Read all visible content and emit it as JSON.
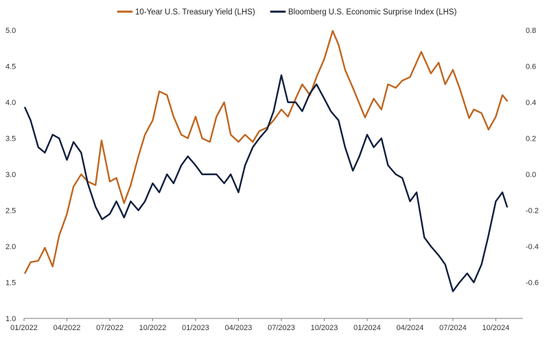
{
  "chart_data": {
    "type": "line",
    "legend_position": "top-center",
    "grid": false,
    "x_ticks": [
      "01/2022",
      "04/2022",
      "07/2022",
      "10/2022",
      "01/2023",
      "04/2023",
      "07/2023",
      "10/2023",
      "01/2024",
      "04/2024",
      "07/2024",
      "10/2024"
    ],
    "x_range_months": [
      "2022-01",
      "2024-10"
    ],
    "y_left": {
      "ticks": [
        "1.0",
        "1.5",
        "2.0",
        "2.5",
        "3.0",
        "3.5",
        "4.0",
        "4.5",
        "5.0"
      ],
      "ylim": [
        1.0,
        5.0
      ]
    },
    "y_right": {
      "ticks": [
        "-0.6",
        "-0.4",
        "-0.2",
        "0.0",
        "0.2",
        "0.4",
        "0.6",
        "0.8"
      ],
      "ylim": [
        -0.8,
        0.8
      ]
    },
    "series": [
      {
        "name": "10-Year U.S. Treasury Yield (LHS)",
        "color": "#C0651E",
        "axis": "left",
        "points": [
          [
            "2022-01-03",
            1.63
          ],
          [
            "2022-01-15",
            1.78
          ],
          [
            "2022-02-01",
            1.8
          ],
          [
            "2022-02-15",
            1.98
          ],
          [
            "2022-03-01",
            1.72
          ],
          [
            "2022-03-15",
            2.15
          ],
          [
            "2022-04-01",
            2.45
          ],
          [
            "2022-04-15",
            2.83
          ],
          [
            "2022-05-01",
            3.0
          ],
          [
            "2022-05-15",
            2.9
          ],
          [
            "2022-06-01",
            2.85
          ],
          [
            "2022-06-14",
            3.47
          ],
          [
            "2022-07-01",
            2.9
          ],
          [
            "2022-07-15",
            2.95
          ],
          [
            "2022-08-01",
            2.6
          ],
          [
            "2022-08-15",
            2.85
          ],
          [
            "2022-09-01",
            3.25
          ],
          [
            "2022-09-15",
            3.55
          ],
          [
            "2022-10-01",
            3.75
          ],
          [
            "2022-10-15",
            4.15
          ],
          [
            "2022-11-01",
            4.1
          ],
          [
            "2022-11-15",
            3.8
          ],
          [
            "2022-12-01",
            3.55
          ],
          [
            "2022-12-15",
            3.5
          ],
          [
            "2023-01-01",
            3.8
          ],
          [
            "2023-01-15",
            3.5
          ],
          [
            "2023-02-01",
            3.45
          ],
          [
            "2023-02-15",
            3.8
          ],
          [
            "2023-03-01",
            4.0
          ],
          [
            "2023-03-15",
            3.55
          ],
          [
            "2023-04-01",
            3.45
          ],
          [
            "2023-04-15",
            3.55
          ],
          [
            "2023-05-01",
            3.45
          ],
          [
            "2023-05-15",
            3.6
          ],
          [
            "2023-06-01",
            3.65
          ],
          [
            "2023-06-15",
            3.75
          ],
          [
            "2023-07-01",
            3.9
          ],
          [
            "2023-07-15",
            3.8
          ],
          [
            "2023-08-01",
            4.05
          ],
          [
            "2023-08-15",
            4.25
          ],
          [
            "2023-09-01",
            4.1
          ],
          [
            "2023-09-15",
            4.35
          ],
          [
            "2023-10-01",
            4.6
          ],
          [
            "2023-10-19",
            4.99
          ],
          [
            "2023-11-01",
            4.8
          ],
          [
            "2023-11-15",
            4.45
          ],
          [
            "2023-12-01",
            4.2
          ],
          [
            "2023-12-27",
            3.79
          ],
          [
            "2024-01-15",
            4.05
          ],
          [
            "2024-02-01",
            3.9
          ],
          [
            "2024-02-15",
            4.25
          ],
          [
            "2024-03-01",
            4.2
          ],
          [
            "2024-03-15",
            4.3
          ],
          [
            "2024-04-01",
            4.35
          ],
          [
            "2024-04-25",
            4.7
          ],
          [
            "2024-05-15",
            4.4
          ],
          [
            "2024-06-01",
            4.55
          ],
          [
            "2024-06-15",
            4.25
          ],
          [
            "2024-07-01",
            4.45
          ],
          [
            "2024-07-15",
            4.2
          ],
          [
            "2024-08-05",
            3.78
          ],
          [
            "2024-08-15",
            3.9
          ],
          [
            "2024-09-01",
            3.85
          ],
          [
            "2024-09-16",
            3.62
          ],
          [
            "2024-10-01",
            3.8
          ],
          [
            "2024-10-15",
            4.1
          ],
          [
            "2024-10-25",
            4.02
          ]
        ]
      },
      {
        "name": "Bloomberg U.S. Economic Surprise Index (LHS)",
        "color": "#0E1E3D",
        "axis": "right",
        "points": [
          [
            "2022-01-03",
            0.37
          ],
          [
            "2022-01-15",
            0.3
          ],
          [
            "2022-02-01",
            0.15
          ],
          [
            "2022-02-15",
            0.12
          ],
          [
            "2022-03-01",
            0.22
          ],
          [
            "2022-03-15",
            0.2
          ],
          [
            "2022-04-01",
            0.08
          ],
          [
            "2022-04-15",
            0.18
          ],
          [
            "2022-05-01",
            0.12
          ],
          [
            "2022-05-15",
            -0.05
          ],
          [
            "2022-06-01",
            -0.18
          ],
          [
            "2022-06-15",
            -0.25
          ],
          [
            "2022-07-01",
            -0.22
          ],
          [
            "2022-07-15",
            -0.15
          ],
          [
            "2022-08-01",
            -0.24
          ],
          [
            "2022-08-15",
            -0.15
          ],
          [
            "2022-09-01",
            -0.2
          ],
          [
            "2022-09-15",
            -0.15
          ],
          [
            "2022-10-01",
            -0.05
          ],
          [
            "2022-10-15",
            -0.1
          ],
          [
            "2022-11-01",
            0.0
          ],
          [
            "2022-11-15",
            -0.05
          ],
          [
            "2022-12-01",
            0.05
          ],
          [
            "2022-12-15",
            0.1
          ],
          [
            "2023-01-01",
            0.05
          ],
          [
            "2023-01-15",
            0.0
          ],
          [
            "2023-02-01",
            0.0
          ],
          [
            "2023-02-15",
            0.0
          ],
          [
            "2023-03-01",
            -0.05
          ],
          [
            "2023-03-15",
            0.0
          ],
          [
            "2023-04-01",
            -0.1
          ],
          [
            "2023-04-15",
            0.05
          ],
          [
            "2023-05-01",
            0.15
          ],
          [
            "2023-05-15",
            0.2
          ],
          [
            "2023-06-01",
            0.25
          ],
          [
            "2023-06-15",
            0.35
          ],
          [
            "2023-07-01",
            0.55
          ],
          [
            "2023-07-15",
            0.4
          ],
          [
            "2023-08-01",
            0.4
          ],
          [
            "2023-08-15",
            0.35
          ],
          [
            "2023-09-01",
            0.45
          ],
          [
            "2023-09-15",
            0.5
          ],
          [
            "2023-10-01",
            0.42
          ],
          [
            "2023-10-15",
            0.35
          ],
          [
            "2023-11-01",
            0.3
          ],
          [
            "2023-11-15",
            0.15
          ],
          [
            "2023-12-01",
            0.02
          ],
          [
            "2023-12-15",
            0.1
          ],
          [
            "2024-01-01",
            0.22
          ],
          [
            "2024-01-15",
            0.15
          ],
          [
            "2024-02-01",
            0.2
          ],
          [
            "2024-02-15",
            0.05
          ],
          [
            "2024-03-01",
            0.0
          ],
          [
            "2024-03-15",
            -0.02
          ],
          [
            "2024-04-01",
            -0.15
          ],
          [
            "2024-04-15",
            -0.1
          ],
          [
            "2024-05-01",
            -0.35
          ],
          [
            "2024-05-15",
            -0.4
          ],
          [
            "2024-06-01",
            -0.45
          ],
          [
            "2024-06-15",
            -0.5
          ],
          [
            "2024-07-01",
            -0.65
          ],
          [
            "2024-07-15",
            -0.6
          ],
          [
            "2024-08-01",
            -0.55
          ],
          [
            "2024-08-15",
            -0.6
          ],
          [
            "2024-09-01",
            -0.5
          ],
          [
            "2024-09-15",
            -0.35
          ],
          [
            "2024-10-01",
            -0.15
          ],
          [
            "2024-10-15",
            -0.1
          ],
          [
            "2024-10-25",
            -0.18
          ]
        ]
      }
    ]
  }
}
